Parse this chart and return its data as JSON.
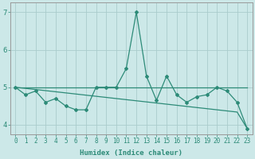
{
  "xlabel": "Humidex (Indice chaleur)",
  "x": [
    0,
    1,
    2,
    3,
    4,
    5,
    6,
    7,
    8,
    9,
    10,
    11,
    12,
    13,
    14,
    15,
    16,
    17,
    18,
    19,
    20,
    21,
    22,
    23
  ],
  "y_main": [
    5.0,
    4.8,
    4.9,
    4.6,
    4.7,
    4.5,
    4.4,
    4.4,
    5.0,
    5.0,
    5.0,
    5.5,
    7.0,
    5.3,
    4.65,
    5.3,
    4.8,
    4.6,
    4.75,
    4.8,
    5.0,
    4.9,
    4.6,
    3.9
  ],
  "y_trend": [
    5.0,
    4.97,
    4.94,
    4.91,
    4.88,
    4.85,
    4.82,
    4.79,
    4.76,
    4.73,
    4.7,
    4.67,
    4.64,
    4.61,
    4.58,
    4.55,
    4.52,
    4.49,
    4.46,
    4.43,
    4.4,
    4.37,
    4.34,
    3.9
  ],
  "y_flat": [
    5.0,
    5.0,
    5.0,
    5.0,
    5.0,
    5.0,
    5.0,
    5.0,
    5.0,
    5.0,
    5.0,
    5.0,
    5.0,
    5.0,
    5.0,
    5.0,
    5.0,
    5.0,
    5.0,
    5.0,
    5.0,
    5.0,
    5.0,
    5.0
  ],
  "line_color": "#2d8b78",
  "bg_color": "#cce8e8",
  "grid_color": "#aacccc",
  "ylim": [
    3.75,
    7.25
  ],
  "xlim": [
    -0.5,
    23.5
  ],
  "yticks": [
    4,
    5,
    6,
    7
  ],
  "xticks": [
    0,
    1,
    2,
    3,
    4,
    5,
    6,
    7,
    8,
    9,
    10,
    11,
    12,
    13,
    14,
    15,
    16,
    17,
    18,
    19,
    20,
    21,
    22,
    23
  ],
  "xlabel_fontsize": 6.5,
  "tick_fontsize": 5.5,
  "ytick_fontsize": 6.5,
  "line_width": 0.9,
  "marker_size": 2.0
}
